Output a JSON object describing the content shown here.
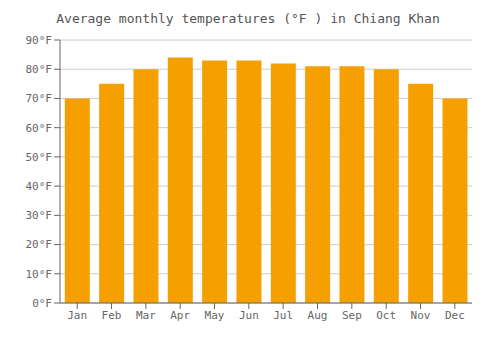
{
  "chart_data": {
    "type": "bar",
    "title": "Average monthly temperatures (°F ) in Chiang Khan",
    "categories": [
      "Jan",
      "Feb",
      "Mar",
      "Apr",
      "May",
      "Jun",
      "Jul",
      "Aug",
      "Sep",
      "Oct",
      "Nov",
      "Dec"
    ],
    "values": [
      70,
      75,
      80,
      84,
      83,
      83,
      82,
      81,
      81,
      80,
      75,
      70
    ],
    "color": "#F5A000",
    "ylim": [
      0,
      90
    ],
    "yticks": [
      {
        "value": 0,
        "label": "0°F"
      },
      {
        "value": 10,
        "label": "10°F"
      },
      {
        "value": 20,
        "label": "20°F"
      },
      {
        "value": 30,
        "label": "30°F"
      },
      {
        "value": 40,
        "label": "40°F"
      },
      {
        "value": 50,
        "label": "50°F"
      },
      {
        "value": 60,
        "label": "60°F"
      },
      {
        "value": 70,
        "label": "70°F"
      },
      {
        "value": 80,
        "label": "80°F"
      },
      {
        "value": 90,
        "label": "90°F"
      }
    ],
    "grid": true
  }
}
